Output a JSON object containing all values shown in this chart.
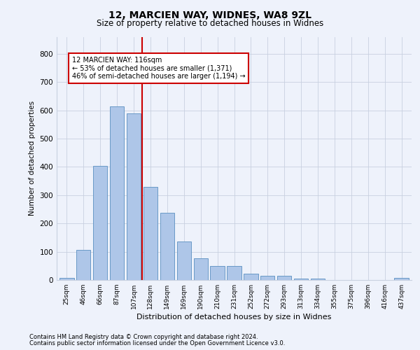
{
  "title1": "12, MARCIEN WAY, WIDNES, WA8 9ZL",
  "title2": "Size of property relative to detached houses in Widnes",
  "xlabel": "Distribution of detached houses by size in Widnes",
  "ylabel": "Number of detached properties",
  "categories": [
    "25sqm",
    "46sqm",
    "66sqm",
    "87sqm",
    "107sqm",
    "128sqm",
    "149sqm",
    "169sqm",
    "190sqm",
    "210sqm",
    "231sqm",
    "252sqm",
    "272sqm",
    "293sqm",
    "313sqm",
    "334sqm",
    "355sqm",
    "375sqm",
    "396sqm",
    "416sqm",
    "437sqm"
  ],
  "values": [
    8,
    106,
    403,
    614,
    590,
    330,
    238,
    137,
    76,
    50,
    50,
    23,
    16,
    16,
    6,
    5,
    0,
    0,
    0,
    0,
    8
  ],
  "bar_color": "#aec6e8",
  "bar_edge_color": "#5a8fc0",
  "vline_x": 4.5,
  "vline_color": "#cc0000",
  "annotation_line1": "12 MARCIEN WAY: 116sqm",
  "annotation_line2": "← 53% of detached houses are smaller (1,371)",
  "annotation_line3": "46% of semi-detached houses are larger (1,194) →",
  "annotation_box_color": "#ffffff",
  "annotation_box_edge": "#cc0000",
  "ylim": [
    0,
    860
  ],
  "yticks": [
    0,
    100,
    200,
    300,
    400,
    500,
    600,
    700,
    800
  ],
  "footer1": "Contains HM Land Registry data © Crown copyright and database right 2024.",
  "footer2": "Contains public sector information licensed under the Open Government Licence v3.0.",
  "bg_color": "#eef2fb",
  "plot_bg": "#eef2fb"
}
